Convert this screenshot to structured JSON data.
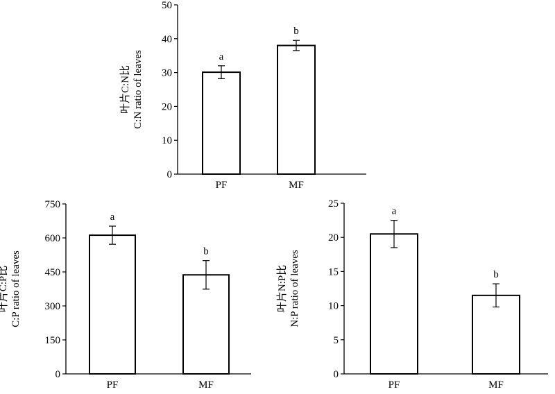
{
  "chart_data": [
    {
      "type": "bar",
      "ylabel_cn": "叶片C:N比",
      "ylabel_en": "C:N ratio of leaves",
      "categories": [
        "PF",
        "MF"
      ],
      "values": [
        30.1,
        38.0
      ],
      "errors": [
        1.9,
        1.5
      ],
      "letters": [
        "a",
        "b"
      ],
      "ylim": [
        0,
        50
      ],
      "yticks": [
        "0",
        "10",
        "20",
        "30",
        "40",
        "50"
      ]
    },
    {
      "type": "bar",
      "ylabel_cn": "叶片C:P比",
      "ylabel_en": "C:P ratio of leaves",
      "categories": [
        "PF",
        "MF"
      ],
      "values": [
        612,
        437
      ],
      "errors": [
        40,
        63
      ],
      "letters": [
        "a",
        "b"
      ],
      "ylim": [
        0,
        750
      ],
      "yticks": [
        "0",
        "150",
        "300",
        "450",
        "600",
        "750"
      ]
    },
    {
      "type": "bar",
      "ylabel_cn": "叶片N:P比",
      "ylabel_en": "N:P ratio of leaves",
      "categories": [
        "PF",
        "MF"
      ],
      "values": [
        20.5,
        11.5
      ],
      "errors": [
        2.0,
        1.7
      ],
      "letters": [
        "a",
        "b"
      ],
      "ylim": [
        0,
        25
      ],
      "yticks": [
        "0",
        "5",
        "10",
        "15",
        "20",
        "25"
      ]
    }
  ]
}
